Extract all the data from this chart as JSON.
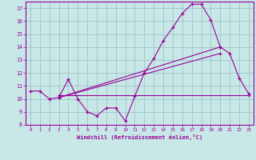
{
  "xlabel": "Windchill (Refroidissement éolien,°C)",
  "line_jagged": {
    "x": [
      0,
      1,
      2,
      3,
      4,
      5,
      6,
      7,
      8,
      9,
      10,
      11,
      12,
      13,
      14,
      15,
      16,
      17,
      18,
      19,
      20,
      21,
      22,
      23
    ],
    "y": [
      10.6,
      10.6,
      10.0,
      10.1,
      11.5,
      10.0,
      9.0,
      8.7,
      9.3,
      9.3,
      8.3,
      10.2,
      12.0,
      13.1,
      14.5,
      15.5,
      16.6,
      17.3,
      17.3,
      16.1,
      14.0,
      13.5,
      11.6,
      10.4
    ]
  },
  "line_diag1": {
    "x": [
      3,
      20
    ],
    "y": [
      10.1,
      14.0
    ]
  },
  "line_diag2": {
    "x": [
      3,
      20
    ],
    "y": [
      10.1,
      13.5
    ]
  },
  "line_horiz": {
    "x": [
      3,
      23
    ],
    "y": [
      10.3,
      10.3
    ]
  },
  "bg_color": "#c8e8e8",
  "line_color": "#990099",
  "grid_color": "#99bbbb",
  "ylim": [
    8,
    17.5
  ],
  "xlim": [
    -0.5,
    23.5
  ],
  "yticks": [
    8,
    9,
    10,
    11,
    12,
    13,
    14,
    15,
    16,
    17
  ],
  "xticks": [
    0,
    1,
    2,
    3,
    4,
    5,
    6,
    7,
    8,
    9,
    10,
    11,
    12,
    13,
    14,
    15,
    16,
    17,
    18,
    19,
    20,
    21,
    22,
    23
  ]
}
